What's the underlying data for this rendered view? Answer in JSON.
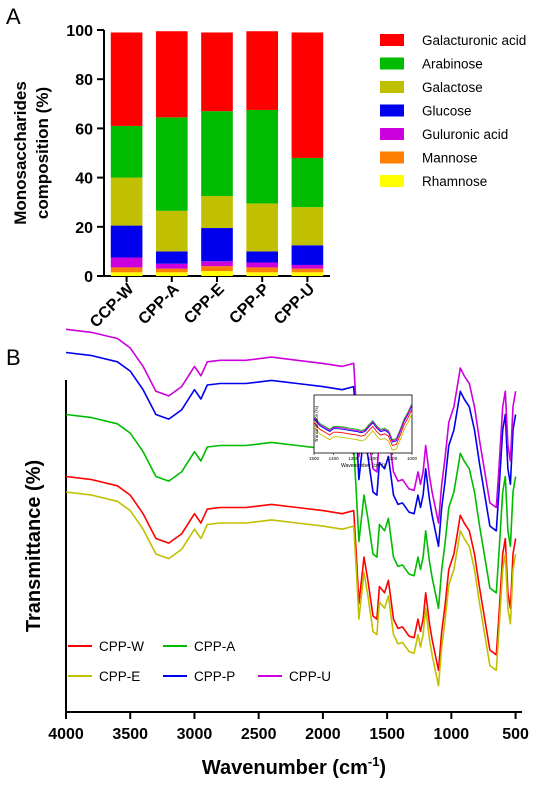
{
  "panels": [
    {
      "label": "A"
    },
    {
      "label": "B"
    }
  ],
  "chart_data": [
    {
      "type": "bar",
      "stacked": true,
      "ylabel": "Monosaccharides composition (%)",
      "ylabel_lines": [
        "Monosaccharides",
        "composition (%)"
      ],
      "ylim": [
        0,
        100
      ],
      "yticks": [
        0,
        20,
        40,
        60,
        80,
        100
      ],
      "categories": [
        "CCP-W",
        "CPP-A",
        "CPP-E",
        "CPP-P",
        "CPP-U"
      ],
      "legend_position": "right",
      "series": [
        {
          "name": "Rhamnose",
          "color": "#FFFF00",
          "values": [
            1.5,
            1.5,
            2.0,
            1.5,
            1.5
          ]
        },
        {
          "name": "Mannose",
          "color": "#FF8000",
          "values": [
            2.0,
            1.5,
            2.0,
            2.0,
            1.5
          ]
        },
        {
          "name": "Guluronic acid",
          "color": "#CC00DD",
          "values": [
            4.0,
            2.0,
            2.0,
            2.0,
            1.5
          ]
        },
        {
          "name": "Glucose",
          "color": "#0000EE",
          "values": [
            13.0,
            5.0,
            13.5,
            4.5,
            8.0
          ]
        },
        {
          "name": "Galactose",
          "color": "#C0C000",
          "values": [
            19.5,
            16.5,
            13.0,
            19.5,
            15.5
          ]
        },
        {
          "name": "Arabinose",
          "color": "#00BB00",
          "values": [
            21.0,
            38.0,
            34.5,
            38.0,
            20.0
          ]
        },
        {
          "name": "Galacturonic acid",
          "color": "#FF0000",
          "values": [
            38.0,
            35.0,
            32.0,
            32.0,
            51.0
          ]
        }
      ]
    },
    {
      "type": "line",
      "xlabel": "Wavenumber (cm",
      "xlabel_sup": "-1",
      "xlabel_close": ")",
      "ylabel": "Transmittance (%)",
      "xlim": [
        4000,
        450
      ],
      "xticks": [
        4000,
        3500,
        3000,
        2500,
        2000,
        1500,
        1000,
        500
      ],
      "yticks_shown": false,
      "legend_position": "bottom-left",
      "series": [
        {
          "name": "CPP-W",
          "color": "#FF0000",
          "offset": 0,
          "x": [
            4000,
            3800,
            3600,
            3500,
            3400,
            3300,
            3200,
            3100,
            3000,
            2950,
            2900,
            2800,
            2600,
            2400,
            2200,
            2000,
            1850,
            1760,
            1740,
            1720,
            1680,
            1650,
            1610,
            1580,
            1560,
            1520,
            1490,
            1450,
            1415,
            1380,
            1330,
            1290,
            1260,
            1240,
            1220,
            1200,
            1170,
            1150,
            1100,
            1075,
            1050,
            1020,
            980,
            950,
            930,
            900,
            860,
            820,
            780,
            700,
            650,
            630,
            600,
            580,
            560,
            540,
            520,
            500
          ],
          "y": [
            70,
            68,
            64,
            58,
            46,
            30,
            27,
            33,
            46,
            40,
            49,
            50,
            50,
            52,
            50,
            48,
            46,
            48,
            20,
            -12,
            18,
            3,
            -20,
            -22,
            -1,
            -5,
            3,
            -22,
            -28,
            -27,
            -33,
            -34,
            -22,
            -30,
            -22,
            -5,
            -25,
            -35,
            -55,
            -30,
            -14,
            10,
            20,
            35,
            45,
            40,
            35,
            20,
            -2,
            -42,
            -45,
            -20,
            20,
            30,
            -5,
            -15,
            20,
            30
          ]
        },
        {
          "name": "CPP-A",
          "color": "#00BB00",
          "offset": 40,
          "x": [
            4000,
            3800,
            3600,
            3500,
            3400,
            3300,
            3200,
            3100,
            3000,
            2950,
            2900,
            2800,
            2600,
            2400,
            2200,
            2000,
            1850,
            1760,
            1740,
            1720,
            1680,
            1650,
            1610,
            1580,
            1560,
            1520,
            1490,
            1450,
            1415,
            1380,
            1330,
            1290,
            1260,
            1240,
            1220,
            1200,
            1170,
            1150,
            1100,
            1075,
            1050,
            1020,
            980,
            950,
            930,
            900,
            860,
            820,
            780,
            700,
            650,
            630,
            600,
            580,
            560,
            540,
            520,
            500
          ],
          "y": [
            70,
            68,
            64,
            58,
            46,
            30,
            27,
            33,
            46,
            40,
            49,
            50,
            50,
            52,
            50,
            48,
            46,
            48,
            20,
            -12,
            18,
            3,
            -20,
            -22,
            -1,
            -5,
            3,
            -22,
            -28,
            -27,
            -33,
            -34,
            -22,
            -30,
            -22,
            -5,
            -25,
            -35,
            -55,
            -30,
            -14,
            10,
            20,
            35,
            45,
            40,
            35,
            20,
            -2,
            -42,
            -45,
            -20,
            20,
            30,
            -5,
            -15,
            20,
            30
          ]
        },
        {
          "name": "CPP-E",
          "color": "#C0C000",
          "offset": -10,
          "x": [
            4000,
            3800,
            3600,
            3500,
            3400,
            3300,
            3200,
            3100,
            3000,
            2950,
            2900,
            2800,
            2600,
            2400,
            2200,
            2000,
            1850,
            1760,
            1740,
            1720,
            1680,
            1650,
            1610,
            1580,
            1560,
            1520,
            1490,
            1450,
            1415,
            1380,
            1330,
            1290,
            1260,
            1240,
            1220,
            1200,
            1170,
            1150,
            1100,
            1075,
            1050,
            1020,
            980,
            950,
            930,
            900,
            860,
            820,
            780,
            700,
            650,
            630,
            600,
            580,
            560,
            540,
            520,
            500
          ],
          "y": [
            70,
            68,
            64,
            58,
            46,
            30,
            27,
            33,
            46,
            40,
            49,
            50,
            50,
            52,
            50,
            48,
            46,
            48,
            20,
            -12,
            18,
            3,
            -20,
            -22,
            -1,
            -5,
            3,
            -22,
            -28,
            -27,
            -33,
            -34,
            -22,
            -30,
            -22,
            -5,
            -25,
            -35,
            -55,
            -30,
            -14,
            10,
            20,
            35,
            45,
            40,
            35,
            20,
            -2,
            -42,
            -45,
            -20,
            20,
            30,
            -5,
            -15,
            20,
            30
          ]
        },
        {
          "name": "CPP-P",
          "color": "#0000EE",
          "offset": 80,
          "x": [
            4000,
            3800,
            3600,
            3500,
            3400,
            3300,
            3200,
            3100,
            3000,
            2950,
            2900,
            2800,
            2600,
            2400,
            2200,
            2000,
            1850,
            1760,
            1740,
            1720,
            1680,
            1650,
            1610,
            1580,
            1560,
            1520,
            1490,
            1450,
            1415,
            1380,
            1330,
            1290,
            1260,
            1240,
            1220,
            1200,
            1170,
            1150,
            1100,
            1075,
            1050,
            1020,
            980,
            950,
            930,
            900,
            860,
            820,
            780,
            700,
            650,
            630,
            600,
            580,
            560,
            540,
            520,
            500
          ],
          "y": [
            70,
            68,
            64,
            58,
            46,
            30,
            27,
            33,
            46,
            40,
            49,
            50,
            50,
            52,
            50,
            48,
            46,
            48,
            20,
            -12,
            18,
            3,
            -20,
            -22,
            -1,
            -5,
            3,
            -22,
            -28,
            -27,
            -33,
            -34,
            -22,
            -30,
            -22,
            -5,
            -25,
            -35,
            -55,
            -30,
            -14,
            10,
            20,
            35,
            45,
            40,
            35,
            20,
            -2,
            -42,
            -45,
            -20,
            20,
            30,
            -5,
            -15,
            20,
            30
          ]
        },
        {
          "name": "CPP-U",
          "color": "#CC00DD",
          "offset": 95,
          "x": [
            4000,
            3800,
            3600,
            3500,
            3400,
            3300,
            3200,
            3100,
            3000,
            2950,
            2900,
            2800,
            2600,
            2400,
            2200,
            2000,
            1850,
            1760,
            1740,
            1720,
            1680,
            1650,
            1610,
            1580,
            1560,
            1520,
            1490,
            1450,
            1415,
            1380,
            1330,
            1290,
            1260,
            1240,
            1220,
            1200,
            1170,
            1150,
            1100,
            1075,
            1050,
            1020,
            980,
            950,
            930,
            900,
            860,
            820,
            780,
            700,
            650,
            630,
            600,
            580,
            560,
            540,
            520,
            500
          ],
          "y": [
            70,
            68,
            64,
            58,
            46,
            30,
            27,
            33,
            46,
            40,
            49,
            50,
            50,
            52,
            50,
            48,
            46,
            48,
            20,
            -12,
            18,
            3,
            -20,
            -22,
            -1,
            -5,
            3,
            -22,
            -28,
            -27,
            -33,
            -34,
            -22,
            -30,
            -22,
            -5,
            -25,
            -35,
            -55,
            -30,
            -14,
            10,
            20,
            35,
            45,
            40,
            35,
            20,
            -2,
            -42,
            -45,
            -20,
            20,
            30,
            -5,
            -15,
            20,
            30
          ]
        }
      ],
      "inset": {
        "type": "line",
        "xlabel": "Wavenumber (cm",
        "xlabel_sup": "-1",
        "xlabel_close": ")",
        "ylabel": "Transmittance (%)",
        "xlim": [
          1500,
          1000
        ],
        "xticks": [
          1500,
          1400,
          1300,
          1200,
          1100,
          1000
        ],
        "series_colors": [
          "#FF0000",
          "#00BB00",
          "#C0C000",
          "#0000EE",
          "#CC00DD"
        ],
        "x": [
          1500,
          1470,
          1440,
          1420,
          1400,
          1380,
          1350,
          1320,
          1300,
          1280,
          1260,
          1240,
          1220,
          1200,
          1180,
          1160,
          1140,
          1120,
          1100,
          1080,
          1060,
          1040,
          1020,
          1000
        ],
        "y": [
          62,
          50,
          44,
          40,
          45,
          45,
          44,
          42,
          41,
          40,
          38,
          40,
          48,
          55,
          46,
          40,
          42,
          38,
          22,
          24,
          40,
          58,
          70,
          85
        ],
        "offsets": [
          -6,
          4,
          -14,
          0,
          2
        ]
      }
    }
  ]
}
